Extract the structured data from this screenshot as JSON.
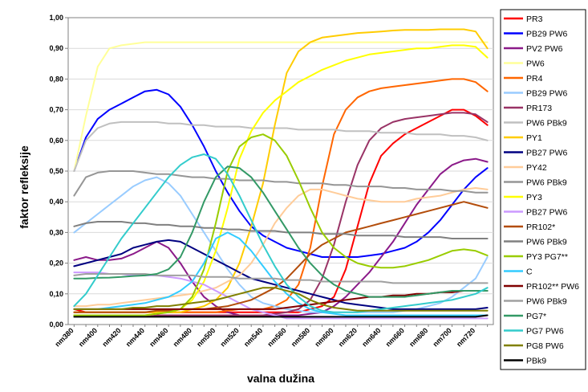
{
  "chart_data": {
    "type": "line",
    "title": "",
    "xlabel": "valna dužina",
    "ylabel": "faktor refleksije",
    "ylim": [
      0,
      1
    ],
    "y_ticks": [
      "0,00",
      "0,10",
      "0,20",
      "0,30",
      "0,40",
      "0,50",
      "0,60",
      "0,70",
      "0,80",
      "0,90",
      "1,00"
    ],
    "grid": "horizontal",
    "legend_position": "right",
    "categories": [
      "nm380",
      "nm390",
      "nm400",
      "nm410",
      "nm420",
      "nm430",
      "nm440",
      "nm450",
      "nm460",
      "nm470",
      "nm480",
      "nm490",
      "nm500",
      "nm510",
      "nm520",
      "nm530",
      "nm540",
      "nm550",
      "nm560",
      "nm570",
      "nm580",
      "nm590",
      "nm600",
      "nm610",
      "nm620",
      "nm630",
      "nm640",
      "nm650",
      "nm660",
      "nm670",
      "nm680",
      "nm690",
      "nm700",
      "nm710",
      "nm720",
      "nm730"
    ],
    "tick_labels": [
      "nm380",
      "nm400",
      "nm420",
      "nm440",
      "nm460",
      "nm480",
      "nm500",
      "nm520",
      "nm540",
      "nm560",
      "nm580",
      "nm600",
      "nm620",
      "nm640",
      "nm660",
      "nm680",
      "nm700",
      "nm720"
    ],
    "series": [
      {
        "name": "PR3",
        "color": "#ff0000",
        "values": [
          0.05,
          0.04,
          0.04,
          0.04,
          0.04,
          0.04,
          0.04,
          0.04,
          0.04,
          0.04,
          0.04,
          0.04,
          0.04,
          0.04,
          0.04,
          0.04,
          0.04,
          0.04,
          0.04,
          0.04,
          0.05,
          0.06,
          0.09,
          0.18,
          0.32,
          0.46,
          0.55,
          0.59,
          0.62,
          0.64,
          0.66,
          0.68,
          0.7,
          0.7,
          0.68,
          0.65
        ]
      },
      {
        "name": "PB29 PW6",
        "color": "#0000ff",
        "values": [
          0.5,
          0.61,
          0.67,
          0.7,
          0.72,
          0.74,
          0.76,
          0.765,
          0.75,
          0.71,
          0.65,
          0.58,
          0.5,
          0.43,
          0.37,
          0.32,
          0.29,
          0.27,
          0.25,
          0.24,
          0.23,
          0.22,
          0.22,
          0.22,
          0.22,
          0.225,
          0.23,
          0.24,
          0.25,
          0.27,
          0.3,
          0.34,
          0.39,
          0.44,
          0.48,
          0.51
        ]
      },
      {
        "name": "PV2 PW6",
        "color": "#8b1a89",
        "values": [
          0.21,
          0.22,
          0.21,
          0.21,
          0.215,
          0.23,
          0.25,
          0.27,
          0.25,
          0.2,
          0.14,
          0.09,
          0.06,
          0.04,
          0.03,
          0.03,
          0.03,
          0.03,
          0.03,
          0.03,
          0.035,
          0.04,
          0.06,
          0.09,
          0.13,
          0.17,
          0.22,
          0.27,
          0.33,
          0.39,
          0.44,
          0.49,
          0.52,
          0.535,
          0.54,
          0.53
        ]
      },
      {
        "name": "PW6",
        "color": "#ffff99",
        "values": [
          0.5,
          0.68,
          0.84,
          0.9,
          0.91,
          0.915,
          0.92,
          0.92,
          0.92,
          0.92,
          0.92,
          0.92,
          0.92,
          0.92,
          0.92,
          0.92,
          0.92,
          0.92,
          0.92,
          0.92,
          0.92,
          0.92,
          0.92,
          0.92,
          0.92,
          0.92,
          0.92,
          0.92,
          0.92,
          0.92,
          0.92,
          0.92,
          0.92,
          0.92,
          0.92,
          0.92
        ]
      },
      {
        "name": "PR4",
        "color": "#ff6600",
        "values": [
          0.04,
          0.04,
          0.04,
          0.04,
          0.04,
          0.04,
          0.04,
          0.04,
          0.04,
          0.04,
          0.04,
          0.04,
          0.04,
          0.045,
          0.05,
          0.05,
          0.05,
          0.06,
          0.08,
          0.13,
          0.25,
          0.45,
          0.62,
          0.7,
          0.74,
          0.76,
          0.77,
          0.775,
          0.78,
          0.785,
          0.79,
          0.795,
          0.8,
          0.8,
          0.79,
          0.76
        ]
      },
      {
        "name": "PB29 PW6",
        "color": "#99ccff",
        "values": [
          0.3,
          0.33,
          0.36,
          0.39,
          0.42,
          0.45,
          0.47,
          0.48,
          0.46,
          0.42,
          0.36,
          0.3,
          0.24,
          0.18,
          0.13,
          0.09,
          0.07,
          0.06,
          0.05,
          0.045,
          0.04,
          0.04,
          0.04,
          0.04,
          0.04,
          0.04,
          0.04,
          0.04,
          0.045,
          0.05,
          0.06,
          0.07,
          0.09,
          0.12,
          0.15,
          0.22
        ]
      },
      {
        "name": "PR173",
        "color": "#993366",
        "values": [
          0.03,
          0.03,
          0.03,
          0.03,
          0.03,
          0.03,
          0.03,
          0.03,
          0.03,
          0.03,
          0.03,
          0.03,
          0.03,
          0.03,
          0.03,
          0.03,
          0.03,
          0.035,
          0.04,
          0.05,
          0.08,
          0.15,
          0.26,
          0.4,
          0.52,
          0.6,
          0.64,
          0.66,
          0.67,
          0.675,
          0.68,
          0.685,
          0.69,
          0.69,
          0.685,
          0.66
        ]
      },
      {
        "name": "PW6 PBk9",
        "color": "#c0c0c0",
        "values": [
          0.5,
          0.6,
          0.64,
          0.655,
          0.66,
          0.66,
          0.66,
          0.66,
          0.655,
          0.655,
          0.65,
          0.65,
          0.645,
          0.645,
          0.645,
          0.64,
          0.64,
          0.64,
          0.64,
          0.635,
          0.635,
          0.635,
          0.635,
          0.63,
          0.63,
          0.63,
          0.625,
          0.625,
          0.625,
          0.62,
          0.62,
          0.62,
          0.615,
          0.615,
          0.61,
          0.6
        ]
      },
      {
        "name": "PY1",
        "color": "#ffcc00",
        "values": [
          0.04,
          0.04,
          0.04,
          0.04,
          0.04,
          0.04,
          0.04,
          0.04,
          0.04,
          0.04,
          0.05,
          0.06,
          0.08,
          0.12,
          0.2,
          0.32,
          0.46,
          0.65,
          0.82,
          0.89,
          0.92,
          0.935,
          0.94,
          0.945,
          0.95,
          0.952,
          0.955,
          0.958,
          0.96,
          0.96,
          0.96,
          0.962,
          0.962,
          0.962,
          0.955,
          0.9
        ]
      },
      {
        "name": "PB27 PW6",
        "color": "#000080",
        "values": [
          0.19,
          0.2,
          0.21,
          0.22,
          0.23,
          0.25,
          0.26,
          0.27,
          0.275,
          0.27,
          0.25,
          0.23,
          0.21,
          0.19,
          0.17,
          0.15,
          0.14,
          0.13,
          0.12,
          0.11,
          0.1,
          0.09,
          0.08,
          0.07,
          0.065,
          0.06,
          0.055,
          0.05,
          0.05,
          0.05,
          0.05,
          0.05,
          0.05,
          0.05,
          0.05,
          0.055
        ]
      },
      {
        "name": "PY42",
        "color": "#ffcc99",
        "values": [
          0.06,
          0.06,
          0.065,
          0.065,
          0.07,
          0.075,
          0.08,
          0.085,
          0.09,
          0.095,
          0.1,
          0.11,
          0.12,
          0.14,
          0.16,
          0.2,
          0.26,
          0.33,
          0.38,
          0.42,
          0.44,
          0.44,
          0.43,
          0.42,
          0.41,
          0.405,
          0.4,
          0.4,
          0.4,
          0.41,
          0.415,
          0.42,
          0.43,
          0.44,
          0.445,
          0.44
        ]
      },
      {
        "name": "PW6 PBk9",
        "color": "#969696",
        "values": [
          0.42,
          0.48,
          0.495,
          0.5,
          0.5,
          0.5,
          0.495,
          0.49,
          0.49,
          0.485,
          0.48,
          0.48,
          0.475,
          0.475,
          0.47,
          0.47,
          0.47,
          0.465,
          0.465,
          0.46,
          0.46,
          0.46,
          0.455,
          0.455,
          0.45,
          0.45,
          0.45,
          0.445,
          0.445,
          0.44,
          0.44,
          0.44,
          0.435,
          0.435,
          0.43,
          0.43
        ]
      },
      {
        "name": "PY3",
        "color": "#ffff00",
        "values": [
          0.03,
          0.03,
          0.03,
          0.03,
          0.03,
          0.03,
          0.03,
          0.035,
          0.04,
          0.05,
          0.08,
          0.14,
          0.24,
          0.38,
          0.54,
          0.63,
          0.69,
          0.73,
          0.76,
          0.79,
          0.81,
          0.83,
          0.845,
          0.86,
          0.87,
          0.88,
          0.885,
          0.89,
          0.895,
          0.9,
          0.9,
          0.905,
          0.91,
          0.91,
          0.905,
          0.87
        ]
      },
      {
        "name": "PB27 PW6",
        "color": "#cc99ff",
        "values": [
          0.17,
          0.17,
          0.17,
          0.165,
          0.165,
          0.16,
          0.16,
          0.16,
          0.155,
          0.15,
          0.14,
          0.13,
          0.11,
          0.09,
          0.07,
          0.05,
          0.04,
          0.03,
          0.02,
          0.02,
          0.02,
          0.02,
          0.02,
          0.02,
          0.02,
          0.02,
          0.02,
          0.02,
          0.02,
          0.02,
          0.02,
          0.02,
          0.02,
          0.02,
          0.02,
          0.02
        ]
      },
      {
        "name": "PR102*",
        "color": "#b34d0b",
        "values": [
          0.04,
          0.04,
          0.04,
          0.04,
          0.04,
          0.04,
          0.04,
          0.045,
          0.045,
          0.05,
          0.05,
          0.05,
          0.055,
          0.06,
          0.07,
          0.08,
          0.1,
          0.12,
          0.15,
          0.19,
          0.23,
          0.26,
          0.28,
          0.3,
          0.31,
          0.32,
          0.33,
          0.34,
          0.35,
          0.36,
          0.37,
          0.38,
          0.39,
          0.4,
          0.39,
          0.38
        ]
      },
      {
        "name": "PW6 PBk9",
        "color": "#808080",
        "values": [
          0.32,
          0.33,
          0.335,
          0.335,
          0.335,
          0.33,
          0.33,
          0.325,
          0.325,
          0.32,
          0.32,
          0.315,
          0.315,
          0.31,
          0.31,
          0.305,
          0.305,
          0.305,
          0.3,
          0.3,
          0.3,
          0.295,
          0.295,
          0.295,
          0.29,
          0.29,
          0.29,
          0.29,
          0.285,
          0.285,
          0.285,
          0.285,
          0.28,
          0.28,
          0.28,
          0.28
        ]
      },
      {
        "name": "PY3 PG7**",
        "color": "#99cc00",
        "values": [
          0.03,
          0.03,
          0.03,
          0.03,
          0.03,
          0.03,
          0.03,
          0.035,
          0.04,
          0.05,
          0.09,
          0.18,
          0.33,
          0.5,
          0.58,
          0.61,
          0.62,
          0.6,
          0.55,
          0.47,
          0.38,
          0.3,
          0.25,
          0.22,
          0.2,
          0.19,
          0.185,
          0.185,
          0.19,
          0.2,
          0.21,
          0.225,
          0.24,
          0.245,
          0.24,
          0.225
        ]
      },
      {
        "name": "C",
        "color": "#33ccff",
        "values": [
          0.05,
          0.05,
          0.05,
          0.055,
          0.06,
          0.065,
          0.07,
          0.08,
          0.09,
          0.11,
          0.14,
          0.2,
          0.28,
          0.3,
          0.28,
          0.24,
          0.19,
          0.14,
          0.1,
          0.07,
          0.05,
          0.04,
          0.035,
          0.03,
          0.03,
          0.03,
          0.03,
          0.03,
          0.03,
          0.03,
          0.03,
          0.03,
          0.03,
          0.03,
          0.03,
          0.03
        ]
      },
      {
        "name": "PR102** PW6",
        "color": "#800000",
        "values": [
          0.05,
          0.05,
          0.05,
          0.05,
          0.05,
          0.05,
          0.05,
          0.05,
          0.05,
          0.05,
          0.05,
          0.05,
          0.05,
          0.05,
          0.05,
          0.05,
          0.05,
          0.05,
          0.055,
          0.06,
          0.065,
          0.07,
          0.075,
          0.08,
          0.085,
          0.09,
          0.09,
          0.095,
          0.095,
          0.1,
          0.1,
          0.105,
          0.105,
          0.11,
          0.11,
          0.11
        ]
      },
      {
        "name": "PW6 PBk9",
        "color": "#a0a0a0",
        "values": [
          0.16,
          0.165,
          0.165,
          0.165,
          0.165,
          0.165,
          0.165,
          0.16,
          0.16,
          0.16,
          0.16,
          0.155,
          0.155,
          0.155,
          0.15,
          0.15,
          0.15,
          0.15,
          0.145,
          0.145,
          0.145,
          0.14,
          0.14,
          0.14,
          0.14,
          0.14,
          0.14,
          0.135,
          0.135,
          0.135,
          0.135,
          0.135,
          0.135,
          0.135,
          0.135,
          0.135
        ]
      },
      {
        "name": "PG7*",
        "color": "#339966",
        "values": [
          0.15,
          0.15,
          0.152,
          0.153,
          0.155,
          0.158,
          0.16,
          0.165,
          0.18,
          0.22,
          0.3,
          0.4,
          0.48,
          0.515,
          0.51,
          0.48,
          0.43,
          0.37,
          0.31,
          0.25,
          0.2,
          0.16,
          0.13,
          0.11,
          0.1,
          0.09,
          0.09,
          0.09,
          0.09,
          0.095,
          0.1,
          0.105,
          0.11,
          0.11,
          0.11,
          0.11
        ]
      },
      {
        "name": "PG7 PW6",
        "color": "#33cccc",
        "values": [
          0.06,
          0.1,
          0.16,
          0.22,
          0.28,
          0.33,
          0.38,
          0.43,
          0.48,
          0.52,
          0.545,
          0.555,
          0.54,
          0.49,
          0.42,
          0.34,
          0.26,
          0.19,
          0.13,
          0.09,
          0.06,
          0.045,
          0.04,
          0.04,
          0.04,
          0.045,
          0.05,
          0.055,
          0.06,
          0.065,
          0.07,
          0.075,
          0.08,
          0.09,
          0.1,
          0.12
        ]
      },
      {
        "name": "PG8 PW6",
        "color": "#808000",
        "values": [
          0.05,
          0.05,
          0.05,
          0.05,
          0.05,
          0.055,
          0.055,
          0.06,
          0.06,
          0.065,
          0.07,
          0.075,
          0.08,
          0.09,
          0.1,
          0.11,
          0.12,
          0.12,
          0.11,
          0.1,
          0.08,
          0.065,
          0.055,
          0.05,
          0.045,
          0.045,
          0.045,
          0.045,
          0.045,
          0.045,
          0.045,
          0.045,
          0.045,
          0.045,
          0.045,
          0.045
        ]
      },
      {
        "name": "PBk9",
        "color": "#000000",
        "values": [
          0.025,
          0.025,
          0.025,
          0.025,
          0.025,
          0.025,
          0.025,
          0.025,
          0.025,
          0.025,
          0.025,
          0.025,
          0.025,
          0.025,
          0.025,
          0.025,
          0.025,
          0.025,
          0.025,
          0.025,
          0.025,
          0.025,
          0.025,
          0.025,
          0.025,
          0.025,
          0.025,
          0.025,
          0.025,
          0.025,
          0.025,
          0.025,
          0.025,
          0.025,
          0.025,
          0.03
        ]
      }
    ]
  }
}
